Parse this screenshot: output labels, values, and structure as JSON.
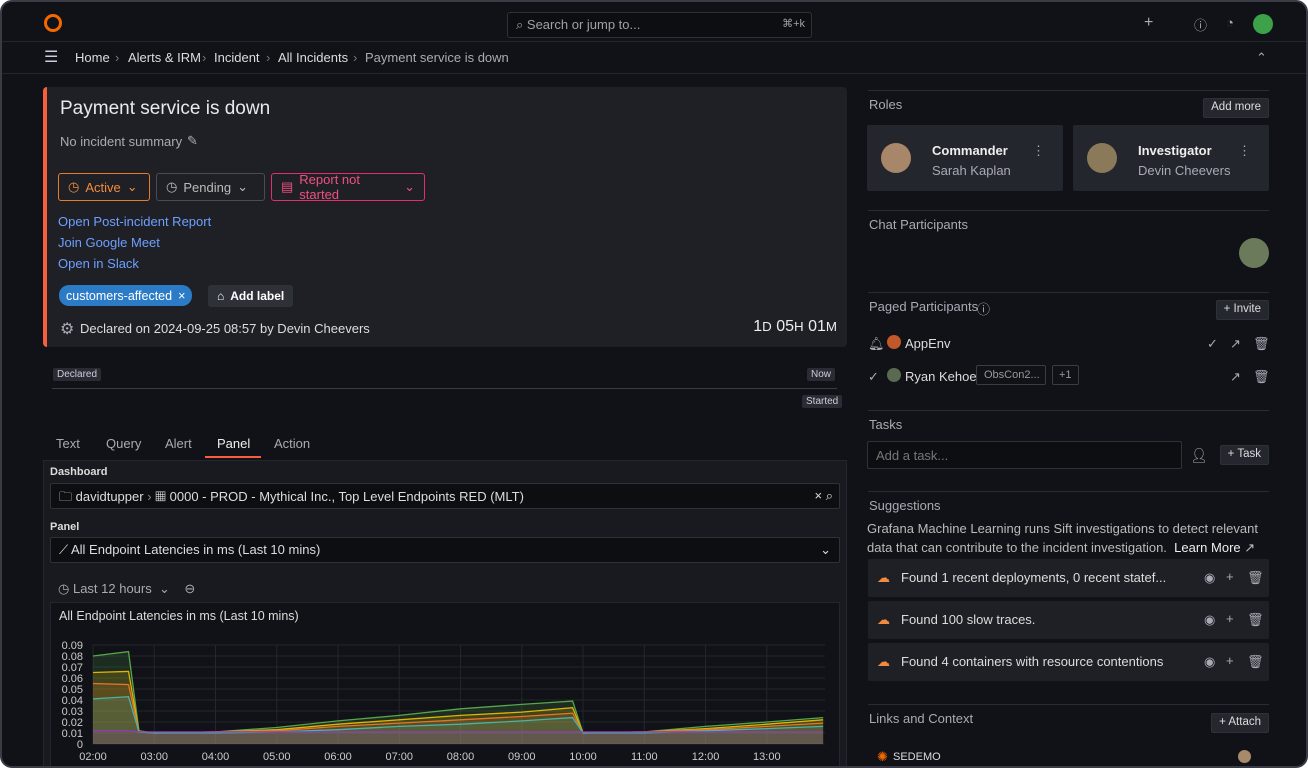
{
  "topbar": {
    "search_placeholder": "Search or jump to...",
    "shortcut": "⌘+k",
    "new_label": "+"
  },
  "breadcrumb": [
    "Home",
    "Alerts & IRM",
    "Incident",
    "All Incidents",
    "Payment service is down"
  ],
  "incident": {
    "title": "Payment service is down",
    "summary": "No incident summary",
    "status": "Active",
    "pending": "Pending",
    "report": "Report not started",
    "links": [
      "Open Post-incident Report",
      "Join Google Meet",
      "Open in Slack"
    ],
    "label": "customers-affected",
    "add_label": "Add label",
    "declared": "Declared on 2024-09-25 08:57 by Devin Cheevers",
    "duration": {
      "d": "1",
      "d_unit": "D",
      "h": "05",
      "h_unit": "H",
      "m": "01",
      "m_unit": "M"
    }
  },
  "timeline": {
    "declared": "Declared",
    "now": "Now",
    "started": "Started"
  },
  "tabs": [
    "Text",
    "Query",
    "Alert",
    "Panel",
    "Action"
  ],
  "active_tab": "Panel",
  "panel_form": {
    "dashboard_label": "Dashboard",
    "folder": "davidtupper",
    "dashboard": "0000 - PROD - Mythical Inc., Top Level Endpoints RED (MLT)",
    "panel_label": "Panel",
    "panel": "All Endpoint Latencies in ms (Last 10 mins)",
    "time_range": "Last 12 hours"
  },
  "chart_data": {
    "type": "area",
    "title": "All Endpoint Latencies in ms (Last 10 mins)",
    "xlabel": "",
    "ylabel": "",
    "ylim": [
      0,
      0.09
    ],
    "yticks": [
      "0",
      "0.01",
      "0.02",
      "0.03",
      "0.04",
      "0.05",
      "0.06",
      "0.07",
      "0.08",
      "0.09"
    ],
    "xticks": [
      "02:00",
      "03:00",
      "04:00",
      "05:00",
      "06:00",
      "07:00",
      "08:00",
      "09:00",
      "10:00",
      "11:00",
      "12:00",
      "13:00"
    ],
    "grid": true,
    "x": [
      2,
      2.58,
      2.75,
      3,
      4,
      5,
      6,
      7,
      8,
      9,
      9.83,
      10,
      11,
      12,
      13,
      13.92
    ],
    "series": [
      {
        "color": "#56a64b",
        "values": [
          0.08,
          0.084,
          0.012,
          0.01,
          0.011,
          0.015,
          0.021,
          0.026,
          0.032,
          0.036,
          0.039,
          0.01,
          0.011,
          0.016,
          0.02,
          0.024
        ]
      },
      {
        "color": "#e0b400",
        "values": [
          0.065,
          0.066,
          0.011,
          0.01,
          0.011,
          0.013,
          0.018,
          0.022,
          0.026,
          0.029,
          0.033,
          0.01,
          0.011,
          0.014,
          0.018,
          0.022
        ]
      },
      {
        "color": "#e0752d",
        "values": [
          0.055,
          0.054,
          0.011,
          0.01,
          0.011,
          0.012,
          0.016,
          0.019,
          0.022,
          0.025,
          0.028,
          0.01,
          0.011,
          0.013,
          0.016,
          0.019
        ]
      },
      {
        "color": "#4ab2a8",
        "values": [
          0.041,
          0.043,
          0.011,
          0.01,
          0.01,
          0.011,
          0.013,
          0.016,
          0.018,
          0.021,
          0.024,
          0.01,
          0.01,
          0.012,
          0.014,
          0.016
        ]
      },
      {
        "color": "#8f3bb8",
        "values": [
          0.012,
          0.012,
          0.011,
          0.011,
          0.011,
          0.011,
          0.011,
          0.011,
          0.011,
          0.011,
          0.011,
          0.011,
          0.011,
          0.011,
          0.011,
          0.011
        ]
      }
    ]
  },
  "roles": {
    "title": "Roles",
    "add_more": "Add more",
    "items": [
      {
        "role": "Commander",
        "name": "Sarah Kaplan"
      },
      {
        "role": "Investigator",
        "name": "Devin Cheevers"
      }
    ]
  },
  "chat": {
    "title": "Chat Participants"
  },
  "paged": {
    "title": "Paged Participants",
    "invite": "Invite",
    "items": [
      {
        "name": "AppEnv"
      },
      {
        "name": "Ryan Kehoe",
        "tag": "ObsCon2...",
        "more": "+1"
      }
    ]
  },
  "tasks": {
    "title": "Tasks",
    "placeholder": "Add a task...",
    "add": "Task"
  },
  "suggestions": {
    "title": "Suggestions",
    "desc": "Grafana Machine Learning runs Sift investigations to detect relevant data that can contribute to the incident investigation.",
    "learn_more": "Learn More",
    "items": [
      "Found 1 recent deployments, 0 recent statef...",
      "Found 100 slow traces.",
      "Found 4 containers with resource contentions"
    ]
  },
  "links": {
    "title": "Links and Context",
    "attach": "Attach",
    "item": "SEDEMO"
  }
}
